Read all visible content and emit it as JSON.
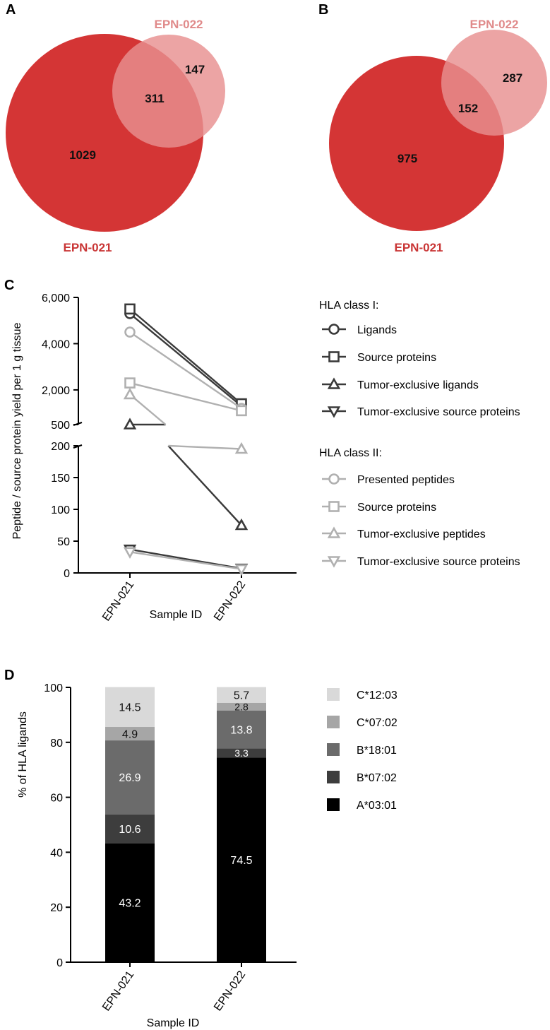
{
  "colors": {
    "venn_big": "#d43535",
    "venn_small": "#e89090",
    "venn_small_label": "#e08a8a",
    "venn_big_label": "#c93535",
    "class1": "#3a3a3a",
    "class2": "#b0b0b0"
  },
  "chart_data": [
    {
      "type": "venn",
      "panel": "A",
      "sets": [
        {
          "label": "EPN-021",
          "exclusive": 1029
        },
        {
          "label": "EPN-022",
          "exclusive": 147
        }
      ],
      "overlap": 311
    },
    {
      "type": "venn",
      "panel": "B",
      "sets": [
        {
          "label": "EPN-021",
          "exclusive": 975
        },
        {
          "label": "EPN-022",
          "exclusive": 287
        }
      ],
      "overlap": 152
    },
    {
      "type": "line",
      "panel": "C",
      "xlabel": "Sample ID",
      "ylabel": "Peptide / source protein yield per 1 g tissue",
      "categories": [
        "EPN-021",
        "EPN-022"
      ],
      "axis_lower": {
        "ylim": [
          0,
          200
        ],
        "ticks": [
          "0",
          "50",
          "100",
          "150",
          "200"
        ],
        "tick_values": [
          0,
          50,
          100,
          150,
          200
        ]
      },
      "axis_upper": {
        "ylim": [
          500,
          6000
        ],
        "ticks": [
          "500",
          "2,000",
          "4,000",
          "6,000"
        ],
        "tick_values": [
          500,
          2000,
          4000,
          6000
        ]
      },
      "legend_groups": [
        {
          "title": "HLA class I:",
          "series": [
            {
              "name": "Ligands",
              "marker": "circle",
              "values": [
                5300,
                1300
              ]
            },
            {
              "name": "Source proteins",
              "marker": "square",
              "values": [
                5500,
                1400
              ]
            },
            {
              "name": "Tumor-exclusive ligands",
              "marker": "triangle-up",
              "values": [
                500,
                75
              ]
            },
            {
              "name": "Tumor-exclusive source proteins",
              "marker": "triangle-down",
              "values": [
                37,
                7
              ]
            }
          ]
        },
        {
          "title": "HLA class II:",
          "series": [
            {
              "name": "Presented peptides",
              "marker": "circle",
              "values": [
                4500,
                1200
              ]
            },
            {
              "name": "Source proteins",
              "marker": "square",
              "values": [
                2300,
                1100
              ]
            },
            {
              "name": "Tumor-exclusive peptides",
              "marker": "triangle-up",
              "values": [
                1800,
                195
              ]
            },
            {
              "name": "Tumor-exclusive source proteins",
              "marker": "triangle-down",
              "values": [
                33,
                6
              ]
            }
          ]
        }
      ]
    },
    {
      "type": "bar",
      "stacked": true,
      "panel": "D",
      "xlabel": "Sample ID",
      "ylabel": "% of HLA ligands",
      "ylim": [
        0,
        100
      ],
      "ticks": [
        "0",
        "20",
        "40",
        "60",
        "80",
        "100"
      ],
      "tick_values": [
        0,
        20,
        40,
        60,
        80,
        100
      ],
      "categories": [
        "EPN-021",
        "EPN-022"
      ],
      "series": [
        {
          "name": "A*03:01",
          "color": "#000000",
          "text_color": "#ffffff",
          "values": [
            43.2,
            74.5
          ],
          "labels": [
            "43.2",
            "74.5"
          ]
        },
        {
          "name": "B*07:02",
          "color": "#3d3d3d",
          "text_color": "#ffffff",
          "values": [
            10.6,
            3.3
          ],
          "labels": [
            "10.6",
            "3.3"
          ]
        },
        {
          "name": "B*18:01",
          "color": "#6b6b6b",
          "text_color": "#ffffff",
          "values": [
            26.9,
            13.8
          ],
          "labels": [
            "26.9",
            "13.8"
          ]
        },
        {
          "name": "C*07:02",
          "color": "#a6a6a6",
          "text_color": "#111111",
          "values": [
            4.9,
            2.8
          ],
          "labels": [
            "4.9",
            "2.8"
          ]
        },
        {
          "name": "C*12:03",
          "color": "#d9d9d9",
          "text_color": "#111111",
          "values": [
            14.5,
            5.7
          ],
          "labels": [
            "14.5",
            "5.7"
          ]
        }
      ]
    }
  ]
}
